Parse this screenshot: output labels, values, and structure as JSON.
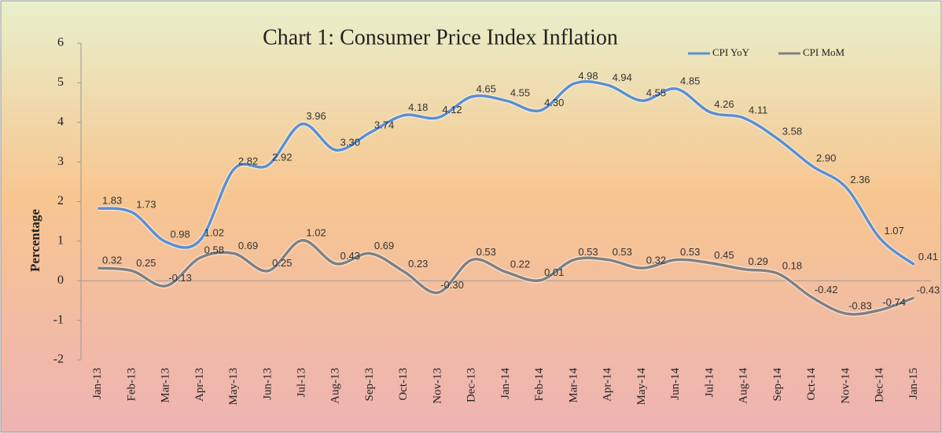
{
  "chart_data": {
    "type": "line",
    "title": "Chart 1: Consumer Price Index Inflation",
    "y_label": "Percentage",
    "categories": [
      "Jan-13",
      "Feb-13",
      "Mar-13",
      "Apr-13",
      "May-13",
      "Jun-13",
      "Jul-13",
      "Aug-13",
      "Sep-13",
      "Oct-13",
      "Nov-13",
      "Dec-13",
      "Jan-14",
      "Feb-14",
      "Mar-14",
      "Apr-14",
      "May-14",
      "Jun-14",
      "Jul-14",
      "Aug-14",
      "Sep-14",
      "Oct-14",
      "Nov-14",
      "Dec-14",
      "Jan-15"
    ],
    "series": [
      {
        "name": "CPI YoY",
        "color": "#5b8fd0",
        "values": [
          1.83,
          1.73,
          0.98,
          1.02,
          2.82,
          2.92,
          3.96,
          3.3,
          3.74,
          4.18,
          4.12,
          4.65,
          4.55,
          4.3,
          4.98,
          4.94,
          4.55,
          4.85,
          4.26,
          4.11,
          3.58,
          2.9,
          2.36,
          1.07,
          0.41
        ],
        "value_labels": [
          "1.83",
          "1.73",
          "0.98",
          "1.02",
          "2.82",
          "2.92",
          "3.96",
          "3.30",
          "3.74",
          "4.18",
          "4.12",
          "4.65",
          "4.55",
          "4.30",
          "4.98",
          "4.94",
          "4.55",
          "4.85",
          "4.26",
          "4.11",
          "3.58",
          "2.90",
          "2.36",
          "1.07",
          "0.41"
        ]
      },
      {
        "name": "CPI MoM",
        "color": "#808080",
        "values": [
          0.32,
          0.25,
          -0.13,
          0.58,
          0.69,
          0.25,
          1.02,
          0.43,
          0.69,
          0.23,
          -0.3,
          0.53,
          0.22,
          0.01,
          0.53,
          0.53,
          0.32,
          0.53,
          0.45,
          0.29,
          0.18,
          -0.42,
          -0.83,
          -0.74,
          -0.43
        ],
        "value_labels": [
          "0.32",
          "0.25",
          "-0.13",
          "0.58",
          "0.69",
          "0.25",
          "1.02",
          "0.43",
          "0.69",
          "0.23",
          "-0.30",
          "0.53",
          "0.22",
          "0.01",
          "0.53",
          "0.53",
          "0.32",
          "0.53",
          "0.45",
          "0.29",
          "0.18",
          "-0.42",
          "-0.83",
          "-0.74",
          "-0.43"
        ]
      }
    ],
    "ylim": [
      -2,
      6
    ],
    "yticks": [
      -2,
      -1,
      0,
      1,
      2,
      3,
      4,
      5,
      6
    ],
    "legend": "top-right"
  }
}
